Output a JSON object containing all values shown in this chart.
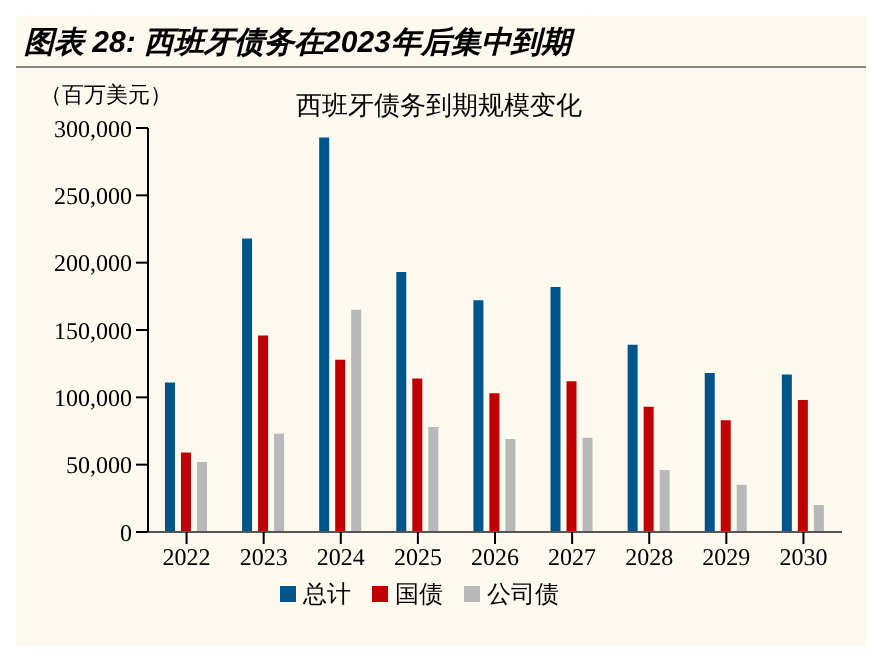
{
  "chart_data": {
    "type": "bar",
    "title": "图表 28:  西班牙债务在2023年后集中到期",
    "subtitle": "西班牙债务到期规模变化",
    "ylabel": "（百万美元）",
    "categories": [
      "2022",
      "2023",
      "2024",
      "2025",
      "2026",
      "2027",
      "2028",
      "2029",
      "2030"
    ],
    "series": [
      {
        "name": "总计",
        "color": "#00558a",
        "values": [
          111000,
          218000,
          293000,
          193000,
          172000,
          182000,
          139000,
          118000,
          117000
        ]
      },
      {
        "name": "国债",
        "color": "#c00000",
        "values": [
          59000,
          146000,
          128000,
          114000,
          103000,
          112000,
          93000,
          83000,
          98000
        ]
      },
      {
        "name": "公司债",
        "color": "#b8b8b8",
        "values": [
          52000,
          73000,
          165000,
          78000,
          69000,
          70000,
          46000,
          35000,
          20000
        ]
      }
    ],
    "ylim": [
      0,
      300000
    ],
    "yticks": [
      0,
      {
        "value": 50000,
        "label": "50,000"
      },
      {
        "value": 100000,
        "label": "100,000"
      },
      {
        "value": 150000,
        "label": "150,000"
      },
      {
        "value": 200000,
        "label": "200,000"
      },
      {
        "value": 250000,
        "label": "250,000"
      },
      {
        "value": 300000,
        "label": "300,000"
      }
    ],
    "grid": false,
    "legend": "bottom"
  }
}
